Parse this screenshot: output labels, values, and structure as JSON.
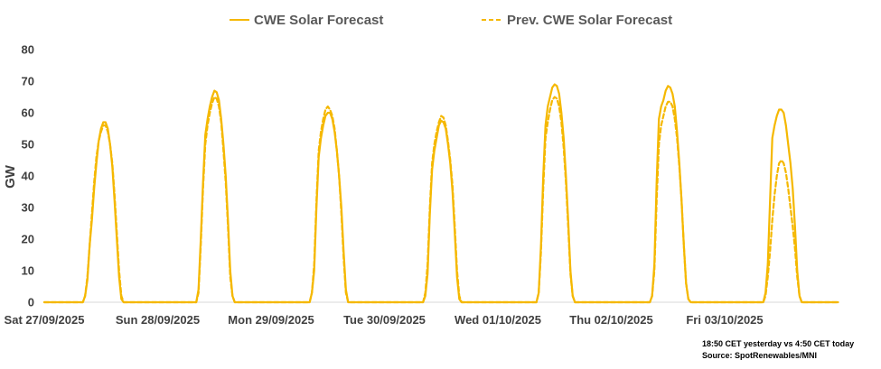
{
  "chart_data": {
    "type": "line",
    "title": "",
    "xlabel": "",
    "ylabel": "GW",
    "ylim": [
      0,
      80
    ],
    "yticks": [
      "0",
      "10",
      "20",
      "30",
      "40",
      "50",
      "60",
      "70",
      "80"
    ],
    "categories": [
      "Sat 27/09/2025",
      "Sun 28/09/2025",
      "Mon 29/09/2025",
      "Tue 30/09/2025",
      "Wed 01/10/2025",
      "Thu 02/10/2025",
      "Fri 03/10/2025"
    ],
    "x_unit": "day",
    "grid": false,
    "legend_position": "top-center",
    "series": [
      {
        "name": "CWE Solar Forecast",
        "style": "solid",
        "color": "#F5B800",
        "points": [
          [
            0.0,
            0
          ],
          [
            0.3,
            0
          ],
          [
            0.34,
            0
          ],
          [
            0.36,
            2
          ],
          [
            0.38,
            7
          ],
          [
            0.4,
            18
          ],
          [
            0.42,
            26
          ],
          [
            0.44,
            36
          ],
          [
            0.46,
            44
          ],
          [
            0.48,
            51
          ],
          [
            0.5,
            55
          ],
          [
            0.52,
            57
          ],
          [
            0.54,
            57
          ],
          [
            0.56,
            55
          ],
          [
            0.58,
            50
          ],
          [
            0.6,
            43
          ],
          [
            0.62,
            32
          ],
          [
            0.64,
            20
          ],
          [
            0.66,
            8
          ],
          [
            0.68,
            1
          ],
          [
            0.7,
            0
          ],
          [
            1.3,
            0
          ],
          [
            1.34,
            0
          ],
          [
            1.36,
            4
          ],
          [
            1.38,
            20
          ],
          [
            1.4,
            38
          ],
          [
            1.42,
            53
          ],
          [
            1.44,
            58
          ],
          [
            1.46,
            62
          ],
          [
            1.48,
            65
          ],
          [
            1.5,
            67
          ],
          [
            1.52,
            66.5
          ],
          [
            1.54,
            64
          ],
          [
            1.56,
            58
          ],
          [
            1.58,
            50
          ],
          [
            1.6,
            40
          ],
          [
            1.62,
            26
          ],
          [
            1.64,
            10
          ],
          [
            1.66,
            2
          ],
          [
            1.68,
            0
          ],
          [
            1.7,
            0
          ],
          [
            2.3,
            0
          ],
          [
            2.34,
            0
          ],
          [
            2.36,
            3
          ],
          [
            2.38,
            10
          ],
          [
            2.4,
            30
          ],
          [
            2.42,
            46
          ],
          [
            2.44,
            52
          ],
          [
            2.46,
            56
          ],
          [
            2.48,
            59
          ],
          [
            2.5,
            60
          ],
          [
            2.52,
            60
          ],
          [
            2.54,
            58
          ],
          [
            2.56,
            54
          ],
          [
            2.58,
            48
          ],
          [
            2.6,
            40
          ],
          [
            2.62,
            30
          ],
          [
            2.64,
            16
          ],
          [
            2.66,
            4
          ],
          [
            2.68,
            0
          ],
          [
            2.7,
            0
          ],
          [
            3.3,
            0
          ],
          [
            3.34,
            0
          ],
          [
            3.36,
            2
          ],
          [
            3.38,
            9
          ],
          [
            3.4,
            28
          ],
          [
            3.42,
            42
          ],
          [
            3.44,
            48
          ],
          [
            3.46,
            52
          ],
          [
            3.48,
            56
          ],
          [
            3.5,
            57.5
          ],
          [
            3.52,
            57
          ],
          [
            3.54,
            55
          ],
          [
            3.56,
            50
          ],
          [
            3.58,
            44
          ],
          [
            3.6,
            35
          ],
          [
            3.62,
            22
          ],
          [
            3.64,
            8
          ],
          [
            3.66,
            1
          ],
          [
            3.68,
            0
          ],
          [
            3.7,
            0
          ],
          [
            4.3,
            0
          ],
          [
            4.34,
            0
          ],
          [
            4.36,
            3
          ],
          [
            4.38,
            18
          ],
          [
            4.4,
            40
          ],
          [
            4.42,
            56
          ],
          [
            4.44,
            62
          ],
          [
            4.46,
            65
          ],
          [
            4.48,
            68
          ],
          [
            4.5,
            69
          ],
          [
            4.52,
            68.5
          ],
          [
            4.54,
            66
          ],
          [
            4.56,
            60
          ],
          [
            4.58,
            52
          ],
          [
            4.6,
            40
          ],
          [
            4.62,
            26
          ],
          [
            4.64,
            10
          ],
          [
            4.66,
            2
          ],
          [
            4.68,
            0
          ],
          [
            4.7,
            0
          ],
          [
            5.3,
            0
          ],
          [
            5.34,
            0
          ],
          [
            5.36,
            2
          ],
          [
            5.38,
            12
          ],
          [
            5.4,
            38
          ],
          [
            5.42,
            58
          ],
          [
            5.44,
            62
          ],
          [
            5.46,
            64
          ],
          [
            5.48,
            67
          ],
          [
            5.5,
            68.5
          ],
          [
            5.52,
            68
          ],
          [
            5.54,
            66
          ],
          [
            5.56,
            62
          ],
          [
            5.58,
            54
          ],
          [
            5.6,
            44
          ],
          [
            5.62,
            32
          ],
          [
            5.64,
            18
          ],
          [
            5.66,
            6
          ],
          [
            5.68,
            1
          ],
          [
            5.7,
            0
          ],
          [
            6.3,
            0
          ],
          [
            6.34,
            0
          ],
          [
            6.36,
            3
          ],
          [
            6.38,
            12
          ],
          [
            6.4,
            32
          ],
          [
            6.42,
            52
          ],
          [
            6.44,
            56
          ],
          [
            6.46,
            59
          ],
          [
            6.48,
            61
          ],
          [
            6.5,
            61
          ],
          [
            6.52,
            60
          ],
          [
            6.54,
            56
          ],
          [
            6.56,
            50
          ],
          [
            6.58,
            44
          ],
          [
            6.6,
            36
          ],
          [
            6.62,
            24
          ],
          [
            6.64,
            10
          ],
          [
            6.66,
            2
          ],
          [
            6.68,
            0
          ],
          [
            6.7,
            0
          ]
        ]
      },
      {
        "name": "Prev. CWE Solar Forecast",
        "style": "dashed",
        "color": "#F5B800",
        "points": [
          [
            0.0,
            0
          ],
          [
            0.34,
            0
          ],
          [
            0.36,
            2
          ],
          [
            0.38,
            8
          ],
          [
            0.4,
            18
          ],
          [
            0.42,
            28
          ],
          [
            0.44,
            38
          ],
          [
            0.46,
            46
          ],
          [
            0.48,
            51
          ],
          [
            0.5,
            54
          ],
          [
            0.52,
            56
          ],
          [
            0.54,
            56
          ],
          [
            0.56,
            54
          ],
          [
            0.58,
            50
          ],
          [
            0.6,
            44
          ],
          [
            0.62,
            34
          ],
          [
            0.64,
            22
          ],
          [
            0.66,
            10
          ],
          [
            0.68,
            2
          ],
          [
            0.7,
            0
          ],
          [
            1.34,
            0
          ],
          [
            1.36,
            3
          ],
          [
            1.38,
            18
          ],
          [
            1.4,
            36
          ],
          [
            1.42,
            50
          ],
          [
            1.44,
            56
          ],
          [
            1.46,
            60
          ],
          [
            1.48,
            63
          ],
          [
            1.5,
            65
          ],
          [
            1.52,
            64.5
          ],
          [
            1.54,
            62
          ],
          [
            1.56,
            57
          ],
          [
            1.58,
            48
          ],
          [
            1.6,
            38
          ],
          [
            1.62,
            24
          ],
          [
            1.64,
            8
          ],
          [
            1.66,
            2
          ],
          [
            1.68,
            0
          ],
          [
            1.7,
            0
          ],
          [
            2.34,
            0
          ],
          [
            2.36,
            3
          ],
          [
            2.38,
            12
          ],
          [
            2.4,
            32
          ],
          [
            2.42,
            48
          ],
          [
            2.44,
            54
          ],
          [
            2.46,
            58
          ],
          [
            2.48,
            61
          ],
          [
            2.5,
            62
          ],
          [
            2.52,
            61
          ],
          [
            2.54,
            59
          ],
          [
            2.56,
            55
          ],
          [
            2.58,
            48
          ],
          [
            2.6,
            40
          ],
          [
            2.62,
            28
          ],
          [
            2.64,
            14
          ],
          [
            2.66,
            3
          ],
          [
            2.68,
            0
          ],
          [
            2.7,
            0
          ],
          [
            3.34,
            0
          ],
          [
            3.36,
            3
          ],
          [
            3.38,
            12
          ],
          [
            3.4,
            30
          ],
          [
            3.42,
            44
          ],
          [
            3.44,
            50
          ],
          [
            3.46,
            54
          ],
          [
            3.48,
            57
          ],
          [
            3.5,
            59
          ],
          [
            3.52,
            58.5
          ],
          [
            3.54,
            56
          ],
          [
            3.56,
            51
          ],
          [
            3.58,
            45
          ],
          [
            3.6,
            37
          ],
          [
            3.62,
            24
          ],
          [
            3.64,
            10
          ],
          [
            3.66,
            2
          ],
          [
            3.68,
            0
          ],
          [
            3.7,
            0
          ],
          [
            4.34,
            0
          ],
          [
            4.36,
            3
          ],
          [
            4.38,
            16
          ],
          [
            4.4,
            36
          ],
          [
            4.42,
            52
          ],
          [
            4.44,
            57
          ],
          [
            4.46,
            61
          ],
          [
            4.48,
            64
          ],
          [
            4.5,
            65
          ],
          [
            4.52,
            64.5
          ],
          [
            4.54,
            62
          ],
          [
            4.56,
            57
          ],
          [
            4.58,
            49
          ],
          [
            4.6,
            38
          ],
          [
            4.62,
            24
          ],
          [
            4.64,
            9
          ],
          [
            4.66,
            2
          ],
          [
            4.68,
            0
          ],
          [
            4.7,
            0
          ],
          [
            5.34,
            0
          ],
          [
            5.36,
            2
          ],
          [
            5.38,
            10
          ],
          [
            5.4,
            32
          ],
          [
            5.42,
            50
          ],
          [
            5.44,
            56
          ],
          [
            5.46,
            59
          ],
          [
            5.48,
            62
          ],
          [
            5.5,
            63.5
          ],
          [
            5.52,
            63.5
          ],
          [
            5.54,
            62
          ],
          [
            5.56,
            58
          ],
          [
            5.58,
            52
          ],
          [
            5.6,
            43
          ],
          [
            5.62,
            32
          ],
          [
            5.64,
            18
          ],
          [
            5.66,
            6
          ],
          [
            5.68,
            1
          ],
          [
            5.7,
            0
          ],
          [
            6.34,
            0
          ],
          [
            6.36,
            2
          ],
          [
            6.38,
            8
          ],
          [
            6.4,
            16
          ],
          [
            6.42,
            26
          ],
          [
            6.44,
            34
          ],
          [
            6.46,
            40
          ],
          [
            6.48,
            44
          ],
          [
            6.5,
            45
          ],
          [
            6.52,
            44
          ],
          [
            6.54,
            41
          ],
          [
            6.56,
            36
          ],
          [
            6.58,
            30
          ],
          [
            6.6,
            24
          ],
          [
            6.62,
            17
          ],
          [
            6.64,
            8
          ],
          [
            6.66,
            2
          ],
          [
            6.68,
            0
          ],
          [
            6.7,
            0
          ]
        ]
      }
    ]
  },
  "legend": {
    "solid_label": "CWE Solar Forecast",
    "dashed_label": "Prev. CWE Solar Forecast"
  },
  "footnote": {
    "line1": "18:50 CET yesterday vs  4:50 CET today",
    "line2": "Source: SpotRenewables/MNI"
  }
}
